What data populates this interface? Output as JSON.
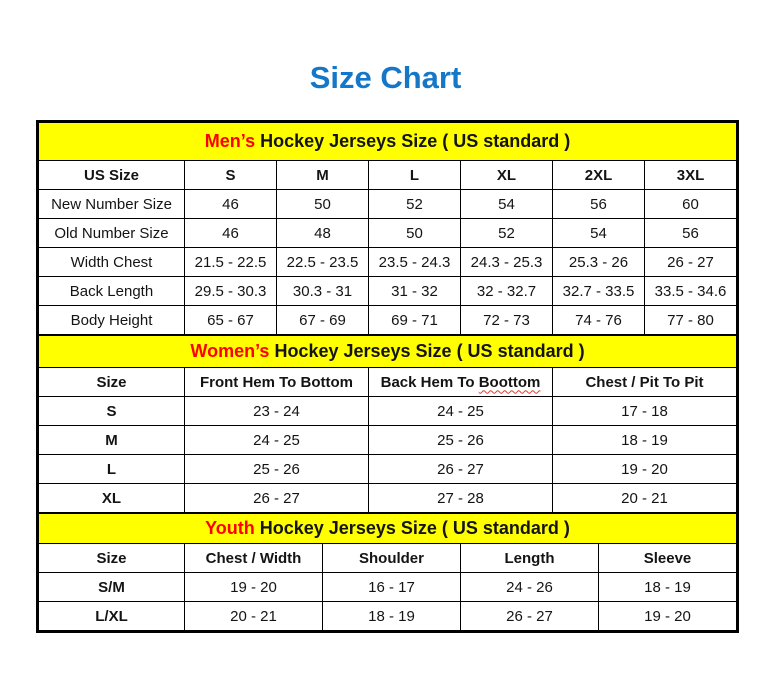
{
  "page": {
    "title": "Size Chart"
  },
  "colors": {
    "title_blue": "#1577c8",
    "band_yellow": "#ffff00",
    "accent_red": "#ff0000",
    "border_black": "#000000"
  },
  "mens": {
    "band": {
      "accent": "Men’s",
      "rest": " Hockey Jerseys Size ( US standard )"
    },
    "header": [
      "US Size",
      "S",
      "M",
      "L",
      "XL",
      "2XL",
      "3XL"
    ],
    "rows": [
      {
        "label": "New Number Size",
        "values": [
          "46",
          "50",
          "52",
          "54",
          "56",
          "60"
        ]
      },
      {
        "label": "Old Number Size",
        "values": [
          "46",
          "48",
          "50",
          "52",
          "54",
          "56"
        ]
      },
      {
        "label": "Width Chest",
        "values": [
          "21.5 - 22.5",
          "22.5 - 23.5",
          "23.5 - 24.3",
          "24.3 - 25.3",
          "25.3 - 26",
          "26 - 27"
        ]
      },
      {
        "label": "Back Length",
        "values": [
          "29.5 - 30.3",
          "30.3 - 31",
          "31 - 32",
          "32 - 32.7",
          "32.7 - 33.5",
          "33.5 - 34.6"
        ]
      },
      {
        "label": "Body Height",
        "values": [
          "65 - 67",
          "67 - 69",
          "69 - 71",
          "72 - 73",
          "74 - 76",
          "77 - 80"
        ]
      }
    ]
  },
  "womens": {
    "band": {
      "accent": "Women’s",
      "rest": " Hockey Jerseys Size ( US standard )"
    },
    "header": [
      "Size",
      "Front Hem To Bottom",
      {
        "prefix": "Back Hem To ",
        "word": "Boottom"
      },
      "Chest / Pit To Pit"
    ],
    "rows": [
      {
        "label": "S",
        "values": [
          "23 - 24",
          "24 - 25",
          "17 - 18"
        ]
      },
      {
        "label": "M",
        "values": [
          "24 - 25",
          "25 - 26",
          "18 - 19"
        ]
      },
      {
        "label": "L",
        "values": [
          "25 - 26",
          "26 - 27",
          "19 - 20"
        ]
      },
      {
        "label": "XL",
        "values": [
          "26 - 27",
          "27 - 28",
          "20 - 21"
        ]
      }
    ]
  },
  "youth": {
    "band": {
      "accent": "Youth",
      "rest": " Hockey Jerseys Size ( US standard )"
    },
    "header": [
      "Size",
      "Chest / Width",
      "Shoulder",
      "Length",
      "Sleeve"
    ],
    "rows": [
      {
        "label": "S/M",
        "values": [
          "19 - 20",
          "16 - 17",
          "24 - 26",
          "18 - 19"
        ]
      },
      {
        "label": "L/XL",
        "values": [
          "20 - 21",
          "18 - 19",
          "26 - 27",
          "19 - 20"
        ]
      }
    ]
  }
}
